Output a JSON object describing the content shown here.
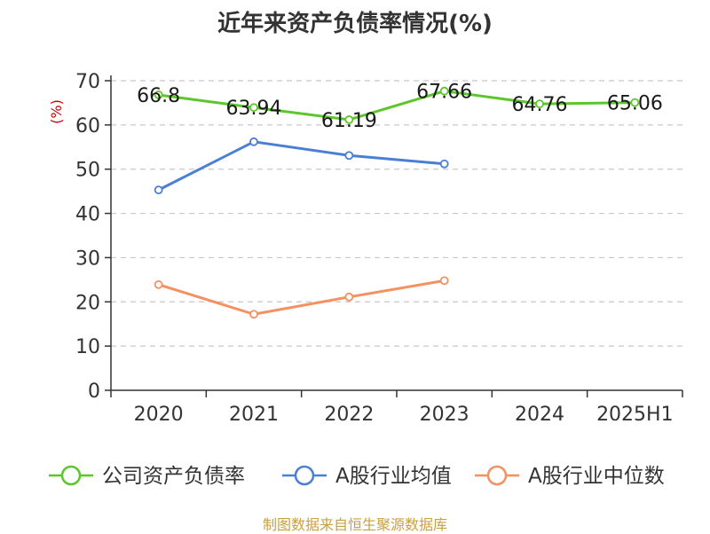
{
  "chart_data": {
    "type": "line",
    "title": "近年来资产负债率情况(%)",
    "ylabel": "(%)",
    "xlabel": "",
    "categories": [
      "2020",
      "2021",
      "2022",
      "2023",
      "2024",
      "2025H1"
    ],
    "ylim": [
      0,
      70
    ],
    "yticks": [
      "0",
      "10",
      "20",
      "30",
      "40",
      "50",
      "60",
      "70"
    ],
    "grid": true,
    "legend_position": "bottom",
    "series": [
      {
        "name": "公司资产负债率",
        "color": "#5cc72a",
        "values": [
          66.8,
          63.94,
          61.19,
          67.66,
          64.76,
          65.06
        ],
        "labels": [
          "66.8",
          "63.94",
          "61.19",
          "67.66",
          "64.76",
          "65.06"
        ]
      },
      {
        "name": "A股行业均值",
        "color": "#4a7fd4",
        "values": [
          45.3,
          56.2,
          53.1,
          51.2,
          null,
          null
        ]
      },
      {
        "name": "A股行业中位数",
        "color": "#f59060",
        "values": [
          23.9,
          17.2,
          21.1,
          24.8,
          null,
          null
        ]
      }
    ]
  },
  "source_note": "制图数据来自恒生聚源数据库"
}
